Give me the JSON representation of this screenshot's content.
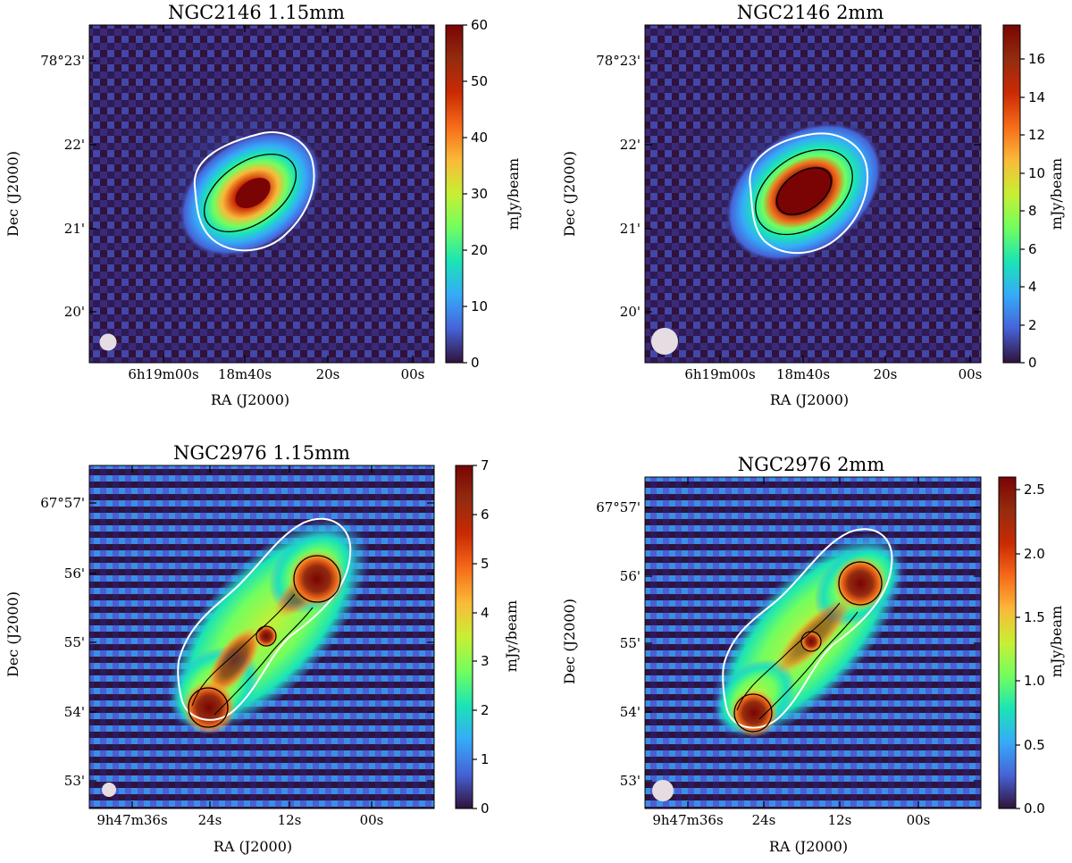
{
  "colormap": "turbo",
  "chart_data": [
    {
      "type": "heatmap",
      "title": "NGC2146 1.15mm",
      "xlabel": "RA (J2000)",
      "ylabel": "Dec (J2000)",
      "xticks": [
        "6h19m00s",
        "18m40s",
        "20s",
        "00s"
      ],
      "yticks": [
        "78°23'",
        "22'",
        "21'",
        "20'"
      ],
      "colorbar": {
        "label": "mJy/beam",
        "range": [
          0,
          60
        ],
        "ticks": [
          "0",
          "10",
          "20",
          "30",
          "40",
          "50",
          "60"
        ]
      },
      "contours": {
        "white": "outer",
        "black": "inner"
      },
      "beam": "bottom-left"
    },
    {
      "type": "heatmap",
      "title": "NGC2146 2mm",
      "xlabel": "RA (J2000)",
      "ylabel": "Dec (J2000)",
      "xticks": [
        "6h19m00s",
        "18m40s",
        "20s",
        "00s"
      ],
      "yticks": [
        "78°23'",
        "22'",
        "21'",
        "20'"
      ],
      "colorbar": {
        "label": "mJy/beam",
        "range": [
          0,
          17.8
        ],
        "ticks": [
          "0",
          "2",
          "4",
          "6",
          "8",
          "10",
          "12",
          "14",
          "16"
        ]
      },
      "contours": {
        "white": "outer",
        "black": "inner"
      },
      "beam": "bottom-left"
    },
    {
      "type": "heatmap",
      "title": "NGC2976 1.15mm",
      "xlabel": "RA (J2000)",
      "ylabel": "Dec (J2000)",
      "xticks": [
        "9h47m36s",
        "24s",
        "12s",
        "00s"
      ],
      "yticks": [
        "67°57'",
        "56'",
        "55'",
        "54'",
        "53'"
      ],
      "colorbar": {
        "label": "mJy/beam",
        "range": [
          0,
          7
        ],
        "ticks": [
          "0",
          "1",
          "2",
          "3",
          "4",
          "5",
          "6",
          "7"
        ]
      },
      "contours": {
        "white": "outer",
        "black": "inner"
      },
      "beam": "bottom-left"
    },
    {
      "type": "heatmap",
      "title": "NGC2976 2mm",
      "xlabel": "RA (J2000)",
      "ylabel": "Dec (J2000)",
      "xticks": [
        "9h47m36s",
        "24s",
        "12s",
        "00s"
      ],
      "yticks": [
        "67°57'",
        "56'",
        "55'",
        "54'",
        "53'"
      ],
      "colorbar": {
        "label": "mJy/beam",
        "range": [
          0,
          2.6
        ],
        "ticks": [
          "0.0",
          "0.5",
          "1.0",
          "1.5",
          "2.0",
          "2.5"
        ]
      },
      "contours": {
        "white": "outer",
        "black": "inner"
      },
      "beam": "bottom-left"
    }
  ]
}
